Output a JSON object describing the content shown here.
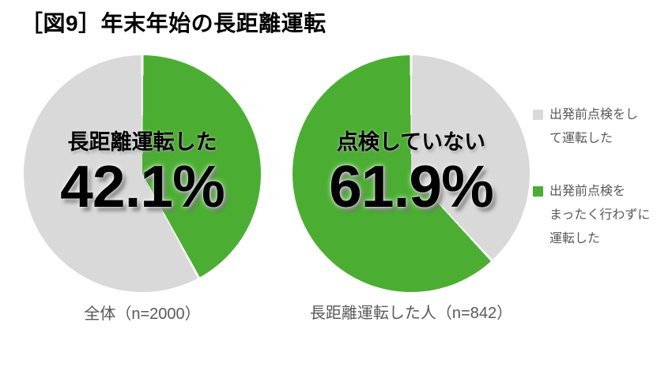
{
  "title": "［図9］年末年始の長距離運転",
  "colors": {
    "green": "#4BAE32",
    "gray": "#D9D9D9",
    "text_gray": "#595959",
    "title_black": "#000000",
    "slice_separator": "#FFFFFF"
  },
  "pies": [
    {
      "inner_label": "長距離運転した",
      "value_label": "42.1%",
      "caption": "全体（n=2000）"
    },
    {
      "inner_label": "点検していない",
      "value_label": "61.9%",
      "caption": "長距離運転した人（n=842）"
    }
  ],
  "legend": {
    "items": [
      {
        "color": "#D9D9D9",
        "label": "出発前点検をして運転した",
        "lines": [
          "出発前点検をし",
          "て運転した",
          ""
        ]
      },
      {
        "color": "#4BAE32",
        "label": "出発前点検をまったく行わずに運転した",
        "lines": [
          "出発前点検を",
          "まったく行わずに",
          "運転した"
        ]
      }
    ]
  },
  "chart_data": [
    {
      "type": "pie",
      "title": "全体（n=2000）",
      "n": 2000,
      "start_angle_deg": 0,
      "direction": "clockwise",
      "data_label": "長距離運転した 42.1%",
      "slices": [
        {
          "label": "長距離運転した",
          "value": 42.1,
          "color": "#4BAE32"
        },
        {
          "label": "",
          "value": 57.9,
          "color": "#D9D9D9"
        }
      ]
    },
    {
      "type": "pie",
      "title": "長距離運転した人（n=842）",
      "n": 842,
      "start_angle_deg": 0,
      "direction": "clockwise",
      "data_label": "点検していない 61.9%",
      "slices": [
        {
          "label": "出発前点検をして運転した",
          "value": 38.1,
          "color": "#D9D9D9"
        },
        {
          "label": "出発前点検をまったく行わずに運転した",
          "value": 61.9,
          "color": "#4BAE32"
        }
      ]
    }
  ]
}
